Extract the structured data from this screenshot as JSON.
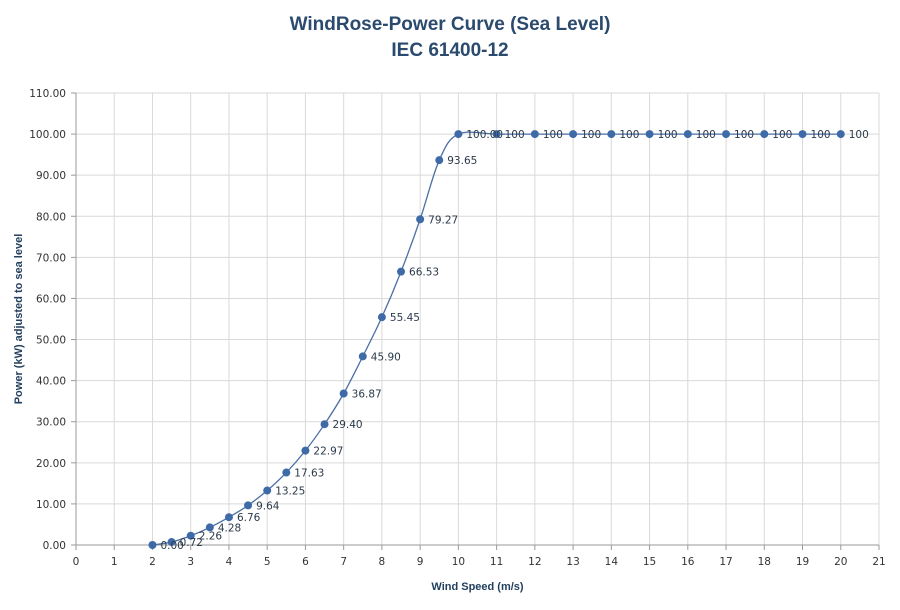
{
  "chart_data": {
    "type": "line",
    "title": "WindRose-Power Curve (Sea Level)",
    "subtitle": "IEC 61400-12",
    "xlabel": "Wind Speed (m/s)",
    "ylabel": "Power (kW) adjusted to sea level",
    "xlim": [
      0,
      21
    ],
    "ylim": [
      0,
      110
    ],
    "x_ticks": [
      "0",
      "1",
      "2",
      "3",
      "4",
      "5",
      "6",
      "7",
      "8",
      "9",
      "10",
      "11",
      "12",
      "13",
      "14",
      "15",
      "16",
      "17",
      "18",
      "19",
      "20",
      "21"
    ],
    "y_ticks": [
      "0.00",
      "10.00",
      "20.00",
      "30.00",
      "40.00",
      "50.00",
      "60.00",
      "70.00",
      "80.00",
      "90.00",
      "100.00",
      "110.00"
    ],
    "grid": true,
    "legend": "none",
    "line_color": "#4a6fa5",
    "marker_color": "#3f6aa8",
    "series": [
      {
        "x": [
          2,
          2.5,
          3,
          3.5,
          4,
          4.5,
          5,
          5.5,
          6,
          6.5,
          7,
          7.5,
          8,
          8.5,
          9,
          9.5,
          10,
          11,
          12,
          13,
          14,
          15,
          16,
          17,
          18,
          19,
          20
        ],
        "values": [
          0,
          0.72,
          2.26,
          4.28,
          6.76,
          9.64,
          13.25,
          17.63,
          22.97,
          29.4,
          36.87,
          45.9,
          55.45,
          66.53,
          79.27,
          93.65,
          100,
          100,
          100,
          100,
          100,
          100,
          100,
          100,
          100,
          100,
          100
        ],
        "labels": [
          "0.00",
          "0.72",
          "2.26",
          "4.28",
          "6.76",
          "9.64",
          "13.25",
          "17.63",
          "22.97",
          "29.40",
          "36.87",
          "45.90",
          "55.45",
          "66.53",
          "79.27",
          "93.65",
          "100.00",
          "100",
          "100",
          "100",
          "100",
          "100",
          "100",
          "100",
          "100",
          "100",
          "100"
        ]
      }
    ]
  }
}
